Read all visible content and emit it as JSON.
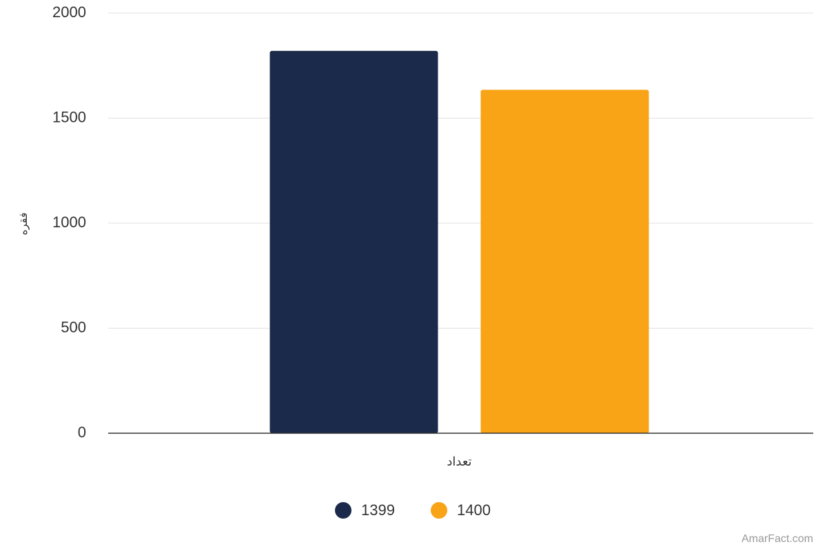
{
  "chart_data": {
    "type": "bar",
    "categories": [
      "تعداد"
    ],
    "y_label": "فقره",
    "series": [
      {
        "name": "1399",
        "color": "#1b2a4a",
        "values": [
          1820
        ]
      },
      {
        "name": "1400",
        "color": "#f9a316",
        "values": [
          1635
        ]
      }
    ],
    "ylim": [
      0,
      2000
    ],
    "yticks": [
      0,
      500,
      1000,
      1500,
      2000
    ],
    "grid": true,
    "legend": "bottom",
    "watermark": "AmarFact.com"
  }
}
